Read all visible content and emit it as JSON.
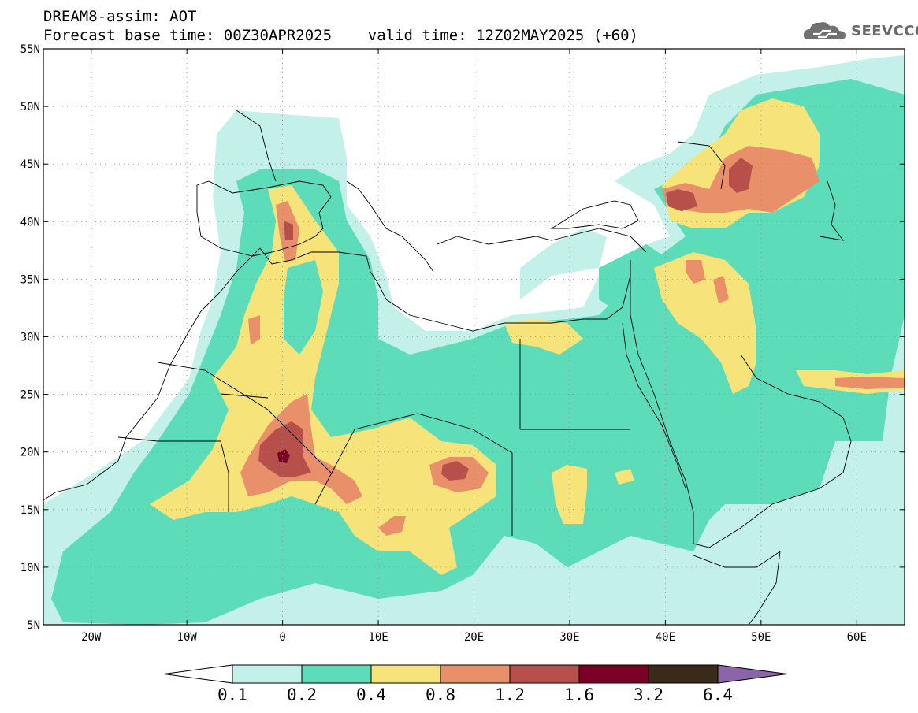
{
  "title": {
    "line1": "DREAM8-assim: AOT",
    "line2": "Forecast base time: 00Z30APR2025    valid time: 12Z02MAY2025 (+60)"
  },
  "logo": {
    "text": "SEEVCCC",
    "icon": "cloud-icon"
  },
  "map": {
    "lon_range": [
      -25,
      65
    ],
    "lat_range": [
      5,
      55
    ],
    "lat_ticks": [
      {
        "value": 55,
        "label": "55N"
      },
      {
        "value": 50,
        "label": "50N"
      },
      {
        "value": 45,
        "label": "45N"
      },
      {
        "value": 40,
        "label": "40N"
      },
      {
        "value": 35,
        "label": "35N"
      },
      {
        "value": 30,
        "label": "30N"
      },
      {
        "value": 25,
        "label": "25N"
      },
      {
        "value": 20,
        "label": "20N"
      },
      {
        "value": 15,
        "label": "15N"
      },
      {
        "value": 10,
        "label": "10N"
      },
      {
        "value": 5,
        "label": "5N"
      }
    ],
    "lon_ticks": [
      {
        "value": -20,
        "label": "20W"
      },
      {
        "value": -10,
        "label": "10W"
      },
      {
        "value": 0,
        "label": "0"
      },
      {
        "value": 10,
        "label": "10E"
      },
      {
        "value": 20,
        "label": "20E"
      },
      {
        "value": 30,
        "label": "30E"
      },
      {
        "value": 40,
        "label": "40E"
      },
      {
        "value": 50,
        "label": "50E"
      },
      {
        "value": 60,
        "label": "60E"
      }
    ],
    "grid": true
  },
  "colorbar": {
    "levels": [
      "0.1",
      "0.2",
      "0.4",
      "0.8",
      "1.2",
      "1.6",
      "3.2",
      "6.4"
    ],
    "colors": [
      "#c4f0ea",
      "#5cdcb9",
      "#f6e37a",
      "#e9906a",
      "#b7504a",
      "#7c0026",
      "#3a2a1a",
      "#8a66a8"
    ],
    "under_color": "#ffffff"
  },
  "fields": {
    "contour_colors": {
      "l1": "#c4f0ea",
      "l2": "#5cdcb9",
      "l3": "#f6e37a",
      "l4": "#e9906a",
      "l5": "#b7504a",
      "l6": "#7c0026"
    }
  }
}
